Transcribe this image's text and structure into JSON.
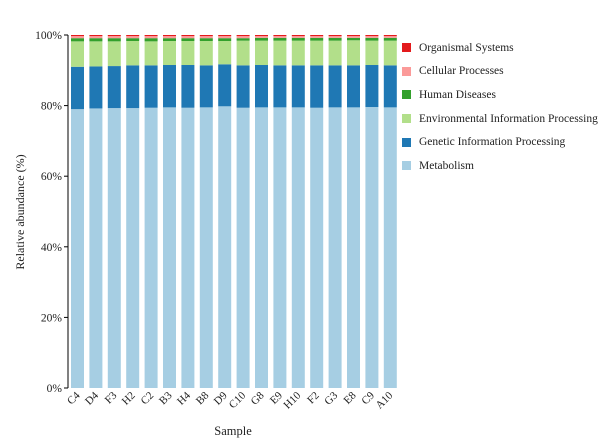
{
  "chart_data": {
    "type": "bar",
    "stacked": true,
    "xlabel": "Sample",
    "ylabel": "Relative abundance (%)",
    "ylim": [
      0,
      100
    ],
    "yticks": [
      "0%",
      "20%",
      "40%",
      "60%",
      "80%",
      "100%"
    ],
    "categories": [
      "C4",
      "D4",
      "F3",
      "H2",
      "C2",
      "B3",
      "H4",
      "B8",
      "D9",
      "C10",
      "G8",
      "E9",
      "H10",
      "F2",
      "G3",
      "E8",
      "C9",
      "A10"
    ],
    "legend_position": "right",
    "series": [
      {
        "name": "Metabolism",
        "color": "#a6cee3",
        "values": [
          79.0,
          79.2,
          79.3,
          79.3,
          79.4,
          79.5,
          79.4,
          79.5,
          79.8,
          79.4,
          79.5,
          79.5,
          79.5,
          79.4,
          79.5,
          79.5,
          79.6,
          79.5
        ]
      },
      {
        "name": "Genetic Information Processing",
        "color": "#1f78b4",
        "values": [
          12.0,
          11.9,
          11.9,
          12.1,
          12.0,
          12.0,
          12.1,
          11.9,
          11.9,
          12.0,
          12.0,
          11.9,
          11.9,
          12.0,
          11.9,
          11.9,
          11.9,
          11.9
        ]
      },
      {
        "name": "Environmental Information Processing",
        "color": "#b2df8a",
        "values": [
          7.2,
          7.1,
          7.0,
          6.9,
          6.8,
          6.8,
          6.8,
          6.9,
          6.6,
          7.0,
          6.9,
          7.0,
          7.0,
          7.0,
          7.0,
          7.1,
          6.9,
          7.0
        ]
      },
      {
        "name": "Human Diseases",
        "color": "#33a02c",
        "values": [
          0.9,
          0.9,
          0.9,
          0.8,
          0.9,
          0.8,
          0.8,
          0.8,
          0.8,
          0.7,
          0.8,
          0.8,
          0.8,
          0.8,
          0.8,
          0.7,
          0.8,
          0.8
        ]
      },
      {
        "name": "Cellular Processes",
        "color": "#fb9a99",
        "values": [
          0.6,
          0.6,
          0.6,
          0.6,
          0.6,
          0.6,
          0.6,
          0.6,
          0.6,
          0.6,
          0.5,
          0.5,
          0.5,
          0.5,
          0.5,
          0.5,
          0.5,
          0.5
        ]
      },
      {
        "name": "Organismal Systems",
        "color": "#e31a1c",
        "values": [
          0.3,
          0.3,
          0.3,
          0.3,
          0.3,
          0.3,
          0.3,
          0.3,
          0.3,
          0.3,
          0.3,
          0.3,
          0.3,
          0.3,
          0.3,
          0.3,
          0.3,
          0.3
        ]
      }
    ]
  }
}
